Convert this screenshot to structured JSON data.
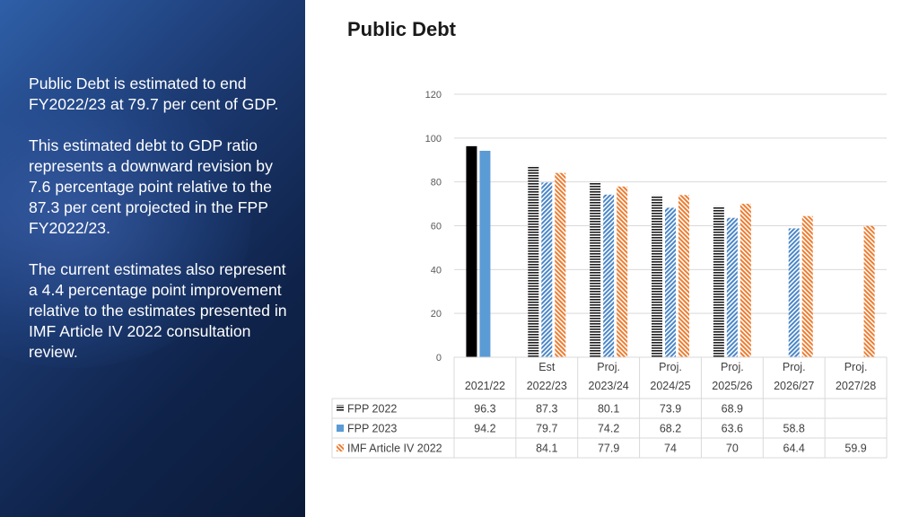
{
  "slide": {
    "title": "Public Debt",
    "paragraphs": [
      "Public Debt is estimated to end FY2022/23 at 79.7 per cent of GDP.",
      "This estimated debt to GDP ratio represents a downward revision by 7.6 percentage point relative to the 87.3 per cent projected in the FPP FY2022/23.",
      "The current estimates also represent a 4.4 percentage point improvement relative to the estimates presented in IMF Article IV 2022 consultation review."
    ]
  },
  "chart_data": {
    "type": "bar",
    "title": "",
    "ylim": [
      0,
      120
    ],
    "yticks": [
      0,
      20,
      40,
      60,
      80,
      100,
      120
    ],
    "grid": true,
    "legend": "data-table",
    "category_top_labels": [
      "",
      "Est",
      "Proj.",
      "Proj.",
      "Proj.",
      "Proj.",
      "Proj."
    ],
    "categories": [
      "2021/22",
      "2022/23",
      "2023/24",
      "2024/25",
      "2025/26",
      "2026/27",
      "2027/28"
    ],
    "series": [
      {
        "name": "FPP 2022",
        "values": [
          96.3,
          87.3,
          80.1,
          73.9,
          68.9,
          null,
          null
        ],
        "color": "#1f1f1f",
        "pattern": "horizontal-lines"
      },
      {
        "name": "FPP 2023",
        "values": [
          94.2,
          79.7,
          74.2,
          68.2,
          63.6,
          58.8,
          null
        ],
        "color": "#5b9bd5",
        "pattern": "diagonal-hatch"
      },
      {
        "name": "IMF Article IV 2022",
        "values": [
          null,
          84.1,
          77.9,
          74,
          70,
          64.4,
          59.9
        ],
        "color": "#ed7d31",
        "pattern": "diagonal-hatch"
      }
    ],
    "table_cells": [
      [
        "96.3",
        "87.3",
        "80.1",
        "73.9",
        "68.9",
        "",
        ""
      ],
      [
        "94.2",
        "79.7",
        "74.2",
        "68.2",
        "63.6",
        "58.8",
        ""
      ],
      [
        "",
        "84.1",
        "77.9",
        "74",
        "70",
        "64.4",
        "59.9"
      ]
    ]
  }
}
